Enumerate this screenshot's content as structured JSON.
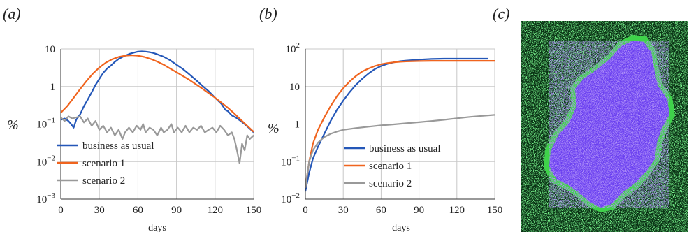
{
  "colors": {
    "business": "#2457b8",
    "scenario1": "#f0641e",
    "scenario2": "#999999",
    "grid": "#c8c8c8",
    "map_background": "#0a3315",
    "map_green": "#3fd24a",
    "map_purple": "#6a3ff0"
  },
  "panels": {
    "a": {
      "letter": "(a)"
    },
    "b": {
      "letter": "(b)"
    },
    "c": {
      "letter": "(c)"
    }
  },
  "chart_data": [
    {
      "id": "a",
      "type": "line",
      "xlabel": "days",
      "ylabel": "%",
      "xlim": [
        0,
        150
      ],
      "ylim": [
        0.001,
        10
      ],
      "yscale": "log",
      "grid": true,
      "legend_position": "lower-left",
      "x_ticks": [
        "0",
        "30",
        "60",
        "90",
        "120",
        "150"
      ],
      "y_ticks": [
        {
          "value": 0.001,
          "base": "10",
          "exp": "−3"
        },
        {
          "value": 0.01,
          "base": "10",
          "exp": "−2"
        },
        {
          "value": 0.1,
          "base": "10",
          "exp": "−1"
        },
        {
          "value": 1,
          "base": "1",
          "exp": ""
        },
        {
          "value": 10,
          "base": "10",
          "exp": ""
        }
      ],
      "series": [
        {
          "name": "business as usual",
          "color": "#2457b8",
          "points": [
            [
              0,
              0.13
            ],
            [
              3,
              0.14
            ],
            [
              6,
              0.12
            ],
            [
              8,
              0.1
            ],
            [
              10,
              0.08
            ],
            [
              12,
              0.13
            ],
            [
              15,
              0.18
            ],
            [
              18,
              0.3
            ],
            [
              21,
              0.45
            ],
            [
              24,
              0.7
            ],
            [
              27,
              1.1
            ],
            [
              30,
              1.6
            ],
            [
              33,
              2.3
            ],
            [
              36,
              3.0
            ],
            [
              39,
              3.6
            ],
            [
              42,
              4.5
            ],
            [
              45,
              5.4
            ],
            [
              48,
              6.1
            ],
            [
              51,
              6.8
            ],
            [
              54,
              7.5
            ],
            [
              57,
              8.0
            ],
            [
              60,
              8.5
            ],
            [
              63,
              8.6
            ],
            [
              66,
              8.5
            ],
            [
              69,
              8.2
            ],
            [
              72,
              7.8
            ],
            [
              75,
              7.2
            ],
            [
              80,
              6.2
            ],
            [
              85,
              5.0
            ],
            [
              90,
              3.8
            ],
            [
              95,
              2.9
            ],
            [
              100,
              2.1
            ],
            [
              105,
              1.5
            ],
            [
              110,
              1.05
            ],
            [
              115,
              0.75
            ],
            [
              120,
              0.5
            ],
            [
              125,
              0.34
            ],
            [
              128,
              0.24
            ],
            [
              130,
              0.22
            ],
            [
              133,
              0.17
            ],
            [
              136,
              0.15
            ],
            [
              140,
              0.12
            ],
            [
              143,
              0.1
            ],
            [
              147,
              0.075
            ],
            [
              150,
              0.06
            ]
          ]
        },
        {
          "name": "scenario 1",
          "color": "#f0641e",
          "points": [
            [
              0,
              0.2
            ],
            [
              5,
              0.3
            ],
            [
              10,
              0.5
            ],
            [
              15,
              0.85
            ],
            [
              20,
              1.4
            ],
            [
              25,
              2.2
            ],
            [
              30,
              3.2
            ],
            [
              35,
              4.3
            ],
            [
              40,
              5.3
            ],
            [
              45,
              6.1
            ],
            [
              50,
              6.6
            ],
            [
              55,
              6.8
            ],
            [
              60,
              6.6
            ],
            [
              65,
              6.1
            ],
            [
              70,
              5.4
            ],
            [
              75,
              4.6
            ],
            [
              80,
              3.8
            ],
            [
              85,
              3.0
            ],
            [
              90,
              2.4
            ],
            [
              95,
              1.9
            ],
            [
              100,
              1.5
            ],
            [
              105,
              1.15
            ],
            [
              110,
              0.88
            ],
            [
              115,
              0.66
            ],
            [
              120,
              0.5
            ],
            [
              125,
              0.37
            ],
            [
              130,
              0.27
            ],
            [
              135,
              0.19
            ],
            [
              140,
              0.13
            ],
            [
              145,
              0.09
            ],
            [
              150,
              0.062
            ]
          ]
        },
        {
          "name": "scenario 2",
          "color": "#999999",
          "points": [
            [
              0,
              0.15
            ],
            [
              3,
              0.12
            ],
            [
              6,
              0.16
            ],
            [
              9,
              0.14
            ],
            [
              12,
              0.15
            ],
            [
              15,
              0.16
            ],
            [
              18,
              0.11
            ],
            [
              21,
              0.14
            ],
            [
              24,
              0.09
            ],
            [
              27,
              0.12
            ],
            [
              30,
              0.07
            ],
            [
              33,
              0.09
            ],
            [
              36,
              0.06
            ],
            [
              39,
              0.08
            ],
            [
              42,
              0.05
            ],
            [
              45,
              0.07
            ],
            [
              48,
              0.04
            ],
            [
              50,
              0.06
            ],
            [
              53,
              0.08
            ],
            [
              56,
              0.06
            ],
            [
              59,
              0.09
            ],
            [
              62,
              0.07
            ],
            [
              64,
              0.1
            ],
            [
              66,
              0.06
            ],
            [
              69,
              0.08
            ],
            [
              72,
              0.07
            ],
            [
              75,
              0.05
            ],
            [
              78,
              0.08
            ],
            [
              80,
              0.06
            ],
            [
              83,
              0.07
            ],
            [
              86,
              0.1
            ],
            [
              88,
              0.06
            ],
            [
              91,
              0.08
            ],
            [
              94,
              0.06
            ],
            [
              97,
              0.09
            ],
            [
              100,
              0.06
            ],
            [
              103,
              0.08
            ],
            [
              106,
              0.07
            ],
            [
              109,
              0.09
            ],
            [
              112,
              0.06
            ],
            [
              115,
              0.07
            ],
            [
              118,
              0.08
            ],
            [
              121,
              0.06
            ],
            [
              124,
              0.09
            ],
            [
              127,
              0.07
            ],
            [
              130,
              0.05
            ],
            [
              133,
              0.06
            ],
            [
              135,
              0.04
            ],
            [
              137,
              0.02
            ],
            [
              139,
              0.009
            ],
            [
              141,
              0.03
            ],
            [
              143,
              0.02
            ],
            [
              145,
              0.05
            ],
            [
              147,
              0.04
            ],
            [
              150,
              0.05
            ]
          ]
        }
      ]
    },
    {
      "id": "b",
      "type": "line",
      "xlabel": "days",
      "ylabel": "%",
      "xlim": [
        0,
        150
      ],
      "ylim": [
        0.01,
        100
      ],
      "yscale": "log",
      "grid": true,
      "legend_position": "lower-right",
      "x_ticks": [
        "0",
        "30",
        "60",
        "90",
        "120",
        "150"
      ],
      "y_ticks": [
        {
          "value": 0.01,
          "base": "10",
          "exp": "−2"
        },
        {
          "value": 0.1,
          "base": "10",
          "exp": "−1"
        },
        {
          "value": 1,
          "base": "1",
          "exp": ""
        },
        {
          "value": 10,
          "base": "10",
          "exp": ""
        },
        {
          "value": 100,
          "base": "10",
          "exp": "2"
        }
      ],
      "series": [
        {
          "name": "business as usual",
          "color": "#2457b8",
          "points": [
            [
              0,
              0.016
            ],
            [
              3,
              0.05
            ],
            [
              6,
              0.12
            ],
            [
              10,
              0.25
            ],
            [
              15,
              0.55
            ],
            [
              20,
              1.2
            ],
            [
              25,
              2.4
            ],
            [
              30,
              4.2
            ],
            [
              35,
              7
            ],
            [
              40,
              11
            ],
            [
              45,
              16
            ],
            [
              50,
              22
            ],
            [
              55,
              29
            ],
            [
              60,
              35
            ],
            [
              65,
              40
            ],
            [
              70,
              44
            ],
            [
              75,
              47
            ],
            [
              80,
              49
            ],
            [
              90,
              52
            ],
            [
              100,
              54
            ],
            [
              110,
              55
            ],
            [
              120,
              55
            ],
            [
              130,
              55
            ],
            [
              140,
              55
            ],
            [
              145,
              55
            ]
          ]
        },
        {
          "name": "scenario 1",
          "color": "#f0641e",
          "points": [
            [
              0,
              0.02
            ],
            [
              3,
              0.1
            ],
            [
              6,
              0.3
            ],
            [
              10,
              0.7
            ],
            [
              15,
              1.5
            ],
            [
              20,
              3
            ],
            [
              25,
              5.5
            ],
            [
              30,
              9
            ],
            [
              35,
              13.5
            ],
            [
              40,
              19
            ],
            [
              45,
              25
            ],
            [
              50,
              30
            ],
            [
              55,
              35
            ],
            [
              60,
              39
            ],
            [
              65,
              42
            ],
            [
              70,
              44
            ],
            [
              75,
              45.5
            ],
            [
              80,
              46.5
            ],
            [
              90,
              47.5
            ],
            [
              100,
              48
            ],
            [
              110,
              48
            ],
            [
              120,
              48
            ],
            [
              130,
              48
            ],
            [
              140,
              48
            ],
            [
              150,
              48
            ]
          ]
        },
        {
          "name": "scenario 2",
          "color": "#999999",
          "points": [
            [
              0,
              0.02
            ],
            [
              3,
              0.1
            ],
            [
              6,
              0.2
            ],
            [
              10,
              0.32
            ],
            [
              15,
              0.45
            ],
            [
              20,
              0.55
            ],
            [
              25,
              0.63
            ],
            [
              30,
              0.7
            ],
            [
              40,
              0.78
            ],
            [
              50,
              0.85
            ],
            [
              60,
              0.92
            ],
            [
              70,
              0.98
            ],
            [
              80,
              1.05
            ],
            [
              90,
              1.12
            ],
            [
              100,
              1.2
            ],
            [
              110,
              1.3
            ],
            [
              120,
              1.42
            ],
            [
              130,
              1.55
            ],
            [
              140,
              1.65
            ],
            [
              150,
              1.75
            ]
          ]
        }
      ]
    }
  ]
}
